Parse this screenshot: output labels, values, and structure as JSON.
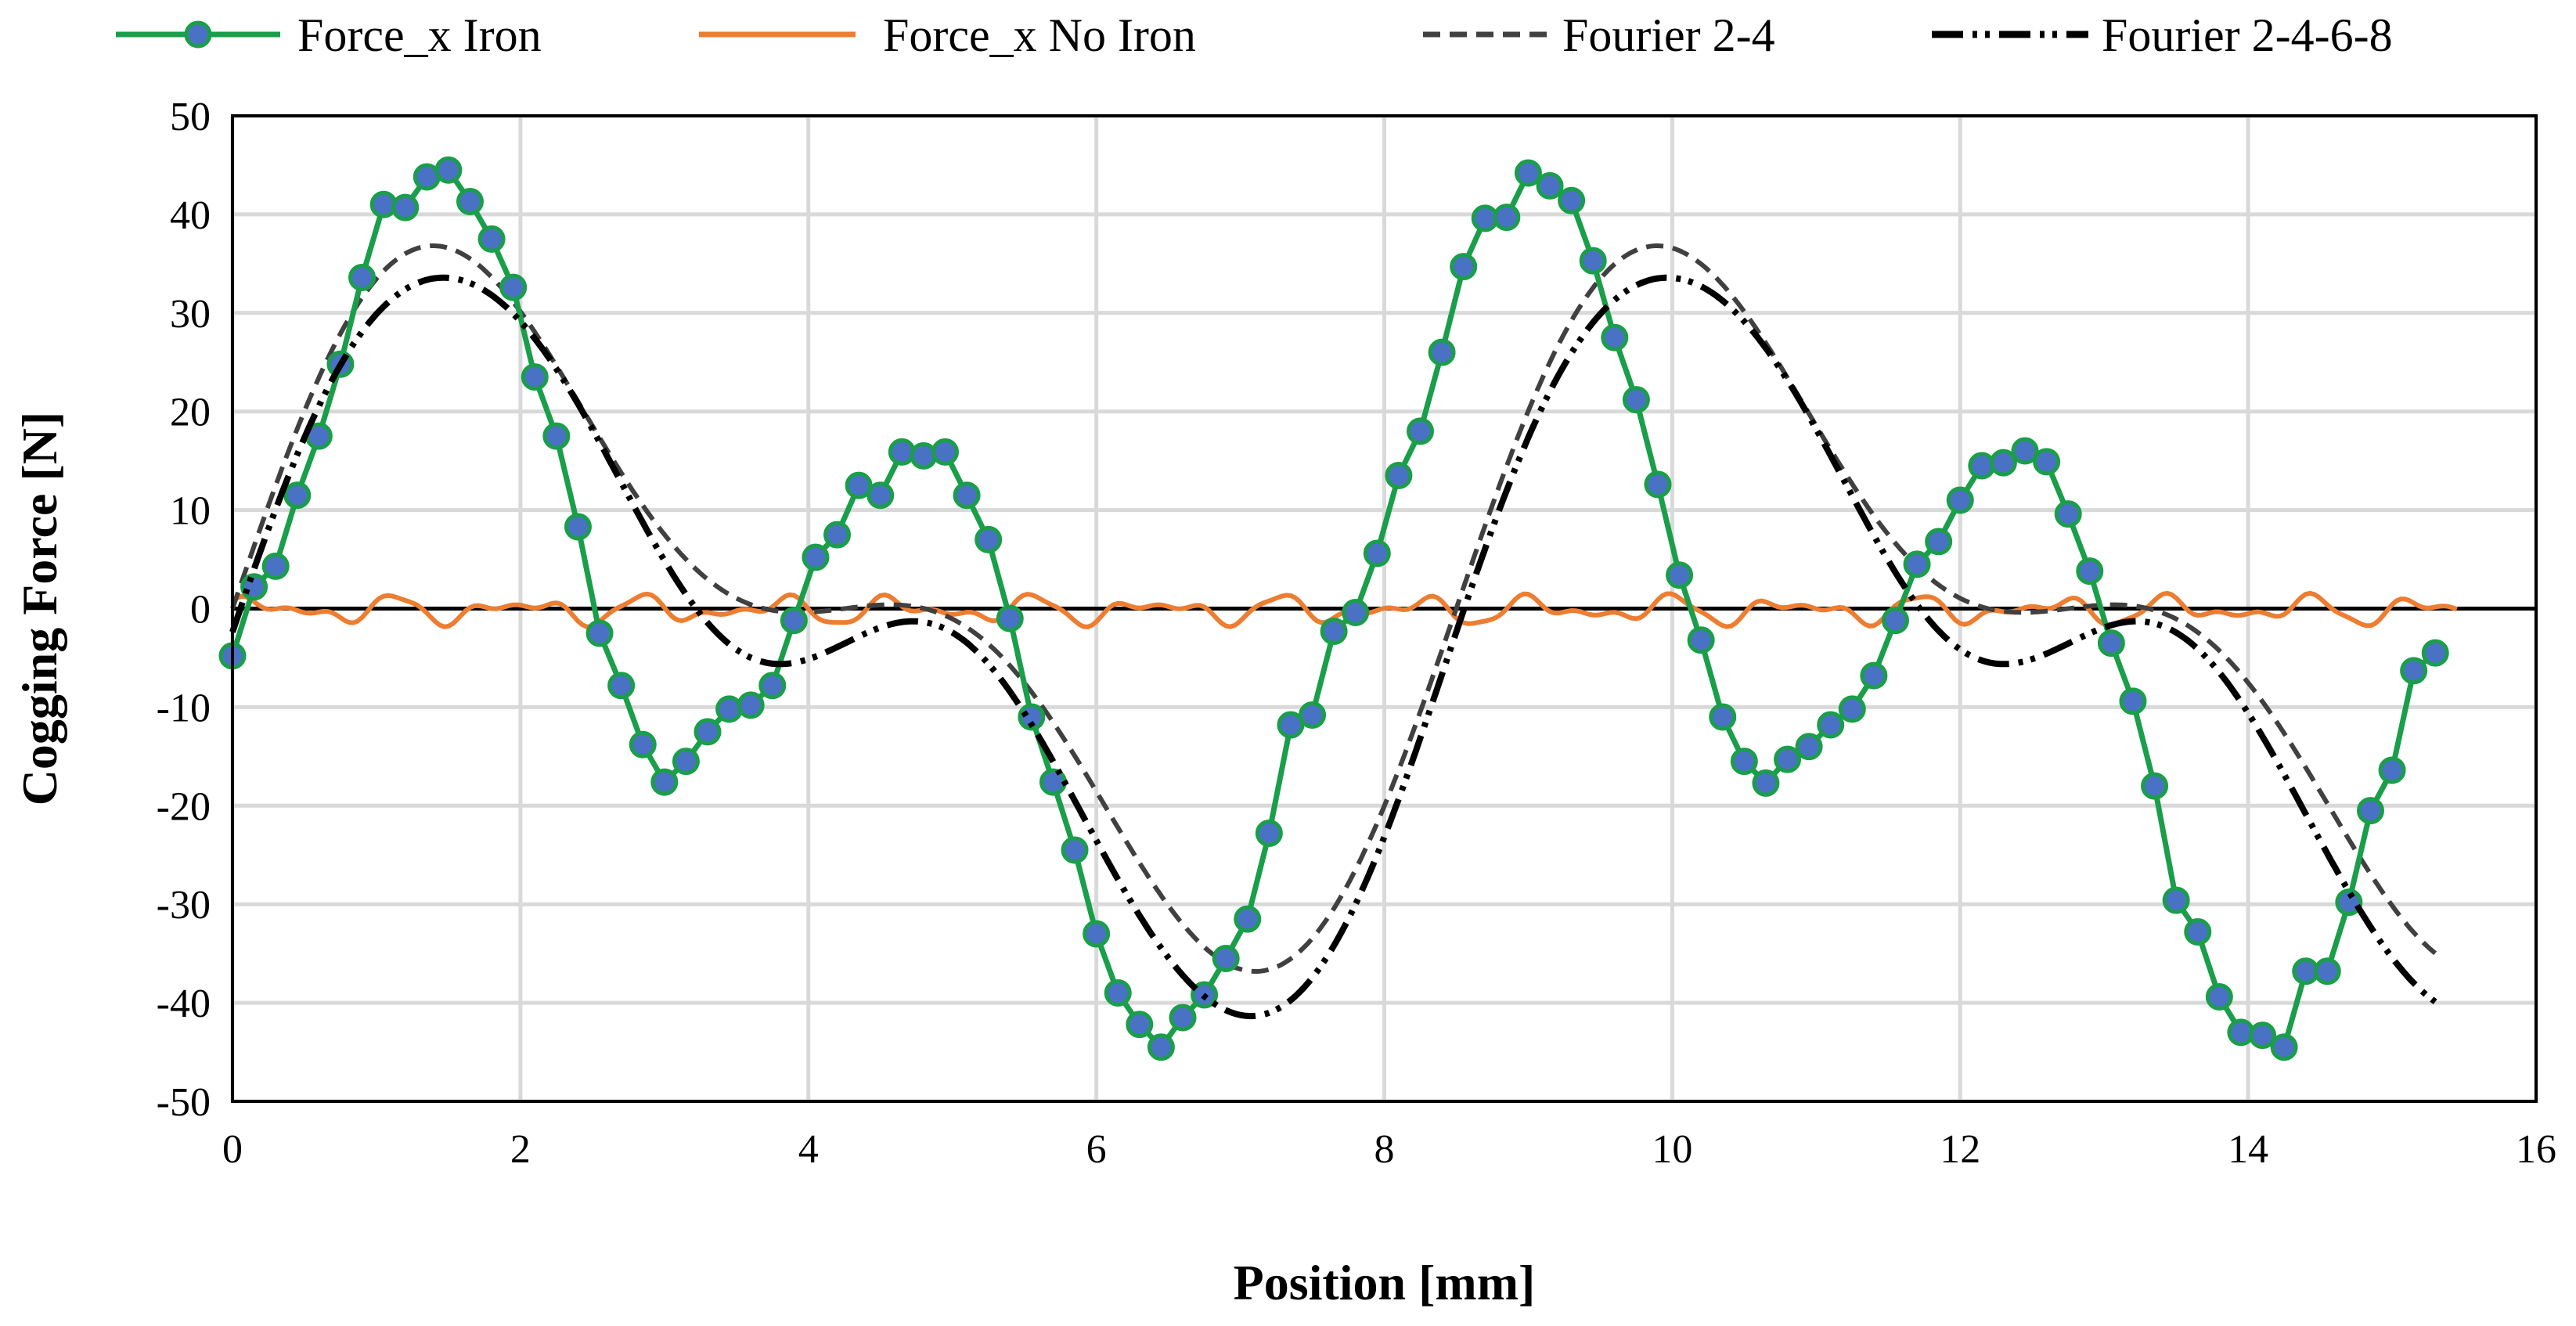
{
  "chart_data": {
    "type": "line",
    "title": "",
    "xlabel": "Position [mm]",
    "ylabel": "Cogging Force [N]",
    "xlim": [
      0,
      16
    ],
    "ylim": [
      -50,
      50
    ],
    "x_ticks": [
      0,
      2,
      4,
      6,
      8,
      10,
      12,
      14,
      16
    ],
    "y_ticks": [
      50,
      40,
      30,
      20,
      10,
      0,
      -10,
      -20,
      -30,
      -40,
      -50
    ],
    "grid": true,
    "legend_position": "top",
    "series": [
      {
        "name": "Force_x Iron",
        "color": "#1a9e4a",
        "marker_color": "#4a72c4",
        "style": "solid-with-markers",
        "x": [
          0,
          0.15,
          0.3,
          0.45,
          0.6,
          0.75,
          0.9,
          1.05,
          1.2,
          1.35,
          1.5,
          1.65,
          1.8,
          1.95,
          2.1,
          2.25,
          2.4,
          2.55,
          2.7,
          2.85,
          3.0,
          3.15,
          3.3,
          3.45,
          3.6,
          3.75,
          3.9,
          4.05,
          4.2,
          4.35,
          4.5,
          4.65,
          4.8,
          4.95,
          5.1,
          5.25,
          5.4,
          5.55,
          5.7,
          5.85,
          6.0,
          6.15,
          6.3,
          6.45,
          6.6,
          6.75,
          6.9,
          7.05,
          7.2,
          7.35,
          7.5,
          7.65,
          7.8,
          7.95,
          8.1,
          8.25,
          8.4,
          8.55,
          8.7,
          8.85,
          9.0,
          9.15,
          9.3,
          9.45,
          9.6,
          9.75,
          9.9,
          10.05,
          10.2,
          10.35,
          10.5,
          10.65,
          10.8,
          10.95,
          11.1,
          11.25,
          11.4,
          11.55,
          11.7,
          11.85,
          12.0,
          12.15,
          12.3,
          12.45,
          12.6,
          12.75,
          12.9,
          13.05,
          13.2,
          13.35,
          13.5,
          13.65,
          13.8,
          13.95,
          14.1,
          14.25,
          14.4,
          14.55,
          14.7,
          14.85,
          15.0,
          15.15,
          15.3
        ],
        "y": [
          -4.8,
          2.2,
          4.3,
          11.5,
          17.5,
          24.8,
          33.6,
          41.0,
          40.7,
          43.8,
          44.5,
          41.3,
          37.5,
          32.6,
          23.5,
          17.5,
          8.3,
          -2.5,
          -7.8,
          -13.8,
          -17.6,
          -15.5,
          -12.5,
          -10.2,
          -9.8,
          -7.8,
          -1.2,
          5.2,
          7.5,
          12.5,
          11.5,
          15.9,
          15.5,
          15.9,
          11.5,
          7.0,
          -1.0,
          -11.0,
          -17.6,
          -24.5,
          -33.0,
          -39.0,
          -42.2,
          -44.5,
          -41.5,
          -39.2,
          -35.5,
          -31.5,
          -22.8,
          -11.8,
          -10.8,
          -2.3,
          -0.4,
          5.6,
          13.5,
          18.0,
          26.0,
          34.7,
          39.6,
          39.7,
          44.2,
          42.9,
          41.4,
          35.3,
          27.5,
          21.2,
          12.6,
          3.4,
          -3.2,
          -11.0,
          -15.5,
          -17.7,
          -15.3,
          -14.0,
          -11.8,
          -10.2,
          -6.8,
          -1.2,
          4.5,
          6.8,
          11.0,
          14.5,
          14.8,
          16.0,
          14.9,
          9.6,
          3.8,
          -3.5,
          -9.4,
          -18.0,
          -29.6,
          -32.8,
          -39.4,
          -43.0,
          -43.3,
          -44.5,
          -36.8,
          -36.8,
          -29.8,
          -20.5,
          -16.4,
          -6.3,
          -4.5
        ]
      },
      {
        "name": "Force_x No Iron",
        "color": "#ed7d31",
        "style": "solid"
      },
      {
        "name": "Fourier 2-4",
        "color": "#404040",
        "style": "dashed"
      },
      {
        "name": "Fourier 2-4-6-8",
        "color": "#000000",
        "style": "dash-dot-dot"
      }
    ]
  }
}
